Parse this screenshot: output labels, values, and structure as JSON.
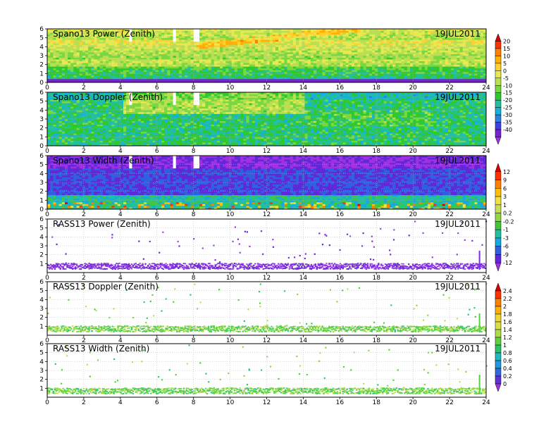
{
  "chart_data": [
    {
      "type": "heatmap",
      "title": "Spano13 Power (Zenith)",
      "date": "19JUL2011",
      "x_ticks": [
        0,
        2,
        4,
        6,
        8,
        10,
        12,
        14,
        16,
        18,
        20,
        22,
        24
      ],
      "y_ticks": [
        0,
        1,
        2,
        3,
        4,
        5,
        6
      ],
      "xlim": [
        0,
        24
      ],
      "ylim": [
        0,
        6
      ],
      "colorbar": "power",
      "pattern": "dense",
      "gaps": [
        4.5,
        6.9,
        8.1
      ]
    },
    {
      "type": "heatmap",
      "title": "Spano13 Doppler (Zenith)",
      "date": "19JUL2011",
      "x_ticks": [
        0,
        2,
        4,
        6,
        8,
        10,
        12,
        14,
        16,
        18,
        20,
        22,
        24
      ],
      "y_ticks": [
        0,
        1,
        2,
        3,
        4,
        5,
        6
      ],
      "xlim": [
        0,
        24
      ],
      "ylim": [
        0,
        6
      ],
      "colorbar": "power",
      "pattern": "dense",
      "gaps": [
        4.5,
        6.9,
        8.1
      ]
    },
    {
      "type": "heatmap",
      "title": "Spano13 Width (Zenith)",
      "date": "19JUL2011",
      "x_ticks": [
        0,
        2,
        4,
        6,
        8,
        10,
        12,
        14,
        16,
        18,
        20,
        22,
        24
      ],
      "y_ticks": [
        0,
        1,
        2,
        3,
        4,
        5,
        6
      ],
      "xlim": [
        0,
        24
      ],
      "ylim": [
        0,
        6
      ],
      "colorbar": "rass_power",
      "pattern": "dense",
      "gaps": [
        4.5,
        6.9,
        8.1
      ]
    },
    {
      "type": "heatmap",
      "title": "RASS13 Power (Zenith)",
      "date": "19JUL2011",
      "x_ticks": [
        0,
        2,
        4,
        6,
        8,
        10,
        12,
        14,
        16,
        18,
        20,
        22,
        24
      ],
      "y_ticks": [
        1,
        2,
        3,
        4,
        5,
        6
      ],
      "xlim": [
        0,
        24
      ],
      "ylim": [
        0,
        6
      ],
      "colorbar": "rass_power",
      "pattern": "sparse",
      "gaps": []
    },
    {
      "type": "heatmap",
      "title": "RASS13 Doppler (Zenith)",
      "date": "19JUL2011",
      "x_ticks": [
        0,
        2,
        4,
        6,
        8,
        10,
        12,
        14,
        16,
        18,
        20,
        22,
        24
      ],
      "y_ticks": [
        1,
        2,
        3,
        4,
        5,
        6
      ],
      "xlim": [
        0,
        24
      ],
      "ylim": [
        0,
        6
      ],
      "colorbar": "rass_doppler",
      "pattern": "sparse",
      "gaps": []
    },
    {
      "type": "heatmap",
      "title": "RASS13 Width (Zenith)",
      "date": "19JUL2011",
      "x_ticks": [
        0,
        2,
        4,
        6,
        8,
        10,
        12,
        14,
        16,
        18,
        20,
        22,
        24
      ],
      "y_ticks": [
        1,
        2,
        3,
        4,
        5,
        6
      ],
      "xlim": [
        0,
        24
      ],
      "ylim": [
        0,
        6
      ],
      "colorbar": "rass_doppler",
      "pattern": "sparse",
      "gaps": []
    }
  ],
  "colorbars": {
    "power": {
      "labels": [
        "20",
        "15",
        "10",
        "5",
        "0",
        "-5",
        "-10",
        "-15",
        "-20",
        "-25",
        "-30",
        "-35",
        "-40"
      ],
      "colors": [
        "#dd0000",
        "#ff3300",
        "#ff7f00",
        "#ffb000",
        "#ffd030",
        "#e8e850",
        "#b8e050",
        "#78d840",
        "#30c830",
        "#20c0a0",
        "#18b0d8",
        "#3080e0",
        "#4040e0",
        "#7820d8",
        "#a030e0"
      ]
    },
    "rass_power": {
      "labels": [
        "12",
        "9",
        "6",
        "3",
        "1",
        "0.2",
        "-0.2",
        "-1",
        "-3",
        "-6",
        "-9",
        "-12"
      ],
      "colors": [
        "#dd0000",
        "#ff3300",
        "#ff7f00",
        "#ffc000",
        "#f0e040",
        "#c8e050",
        "#90d840",
        "#40c838",
        "#20c0a0",
        "#18a8e0",
        "#3060e0",
        "#6028d8",
        "#a030e0"
      ]
    },
    "rass_doppler": {
      "labels": [
        "2.4",
        "2.2",
        "2",
        "1.8",
        "1.6",
        "1.4",
        "1.2",
        "1",
        "0.8",
        "0.6",
        "0.4",
        "0.2",
        "0"
      ],
      "colors": [
        "#dd0000",
        "#ff3300",
        "#ff7f00",
        "#ffb000",
        "#f0d830",
        "#d8e048",
        "#a8dc48",
        "#60d040",
        "#28c468",
        "#20b8c0",
        "#2098e0",
        "#3068e0",
        "#6030d8",
        "#a030e0"
      ]
    }
  }
}
